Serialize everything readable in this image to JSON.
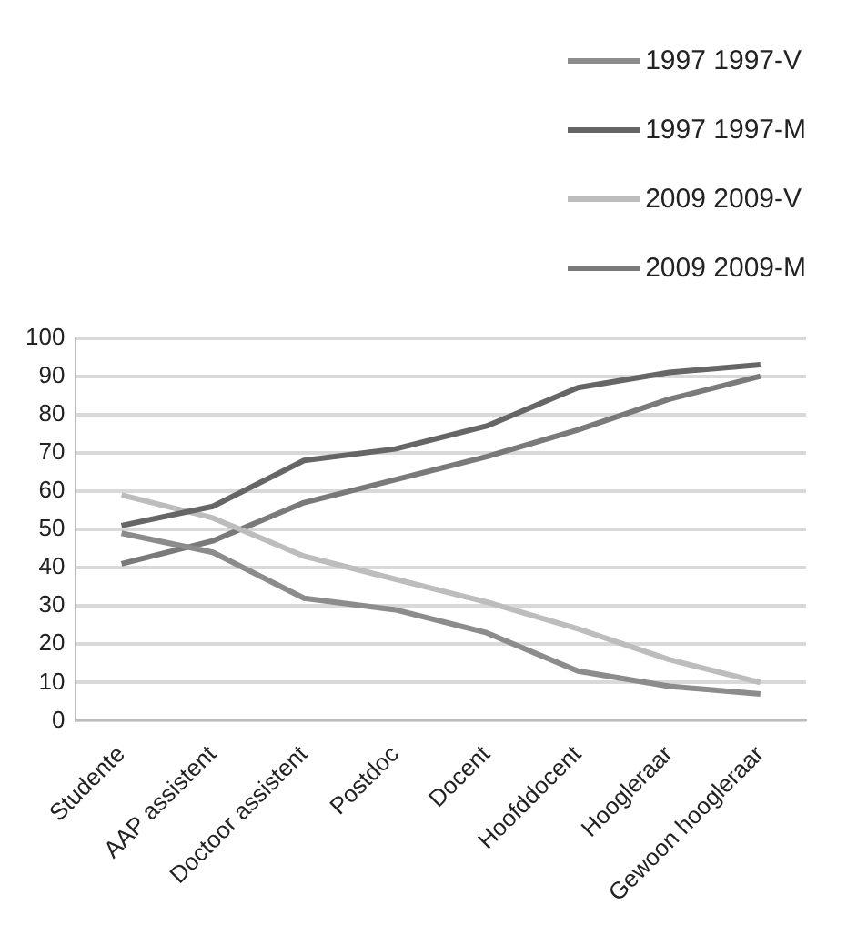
{
  "chart_data": {
    "type": "line",
    "categories": [
      "Studente",
      "AAP assistent",
      "Doctoor assistent",
      "Postdoc",
      "Docent",
      "Hoofddocent",
      "Hoogleraar",
      "Gewoon hoogleraar"
    ],
    "series": [
      {
        "name": "1997 1997-V",
        "color": "#8c8c8c",
        "values": [
          49,
          44,
          32,
          29,
          23,
          13,
          9,
          7
        ]
      },
      {
        "name": "1997 1997-M",
        "color": "#666666",
        "values": [
          51,
          56,
          68,
          71,
          77,
          87,
          91,
          93
        ]
      },
      {
        "name": "2009 2009-V",
        "color": "#bdbdbd",
        "values": [
          59,
          53,
          43,
          37,
          31,
          24,
          16,
          10
        ]
      },
      {
        "name": "2009 2009-M",
        "color": "#7a7a7a",
        "values": [
          41,
          47,
          57,
          63,
          69,
          76,
          84,
          90
        ]
      }
    ],
    "ylim": [
      0,
      100
    ],
    "yticks": [
      0,
      10,
      20,
      30,
      40,
      50,
      60,
      70,
      80,
      90,
      100
    ],
    "grid": "y",
    "legend": "top right",
    "marker": "none",
    "line_style": "solid"
  }
}
